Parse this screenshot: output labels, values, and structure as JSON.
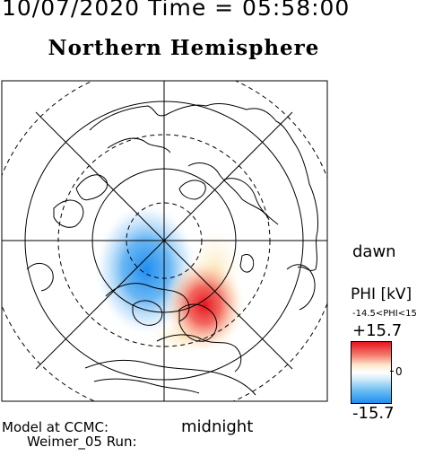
{
  "header": {
    "datetime": "10/07/2020 Time = 05:58:00",
    "title": "Northern Hemisphere"
  },
  "map": {
    "dawn_label": "dawn",
    "midnight_label": "midnight"
  },
  "footer": {
    "model_line1": "Model at CCMC:",
    "model_line2": "Weimer_05 Run:"
  },
  "colorbar": {
    "quantity": "PHI [kV]",
    "range_text": "-14.5<PHI<15",
    "max": "+15.7",
    "zero": "0",
    "min": "-15.7",
    "colors": {
      "positive": "#e8141e",
      "neutral": "#ffffff",
      "negative": "#1f8ef0"
    }
  }
}
